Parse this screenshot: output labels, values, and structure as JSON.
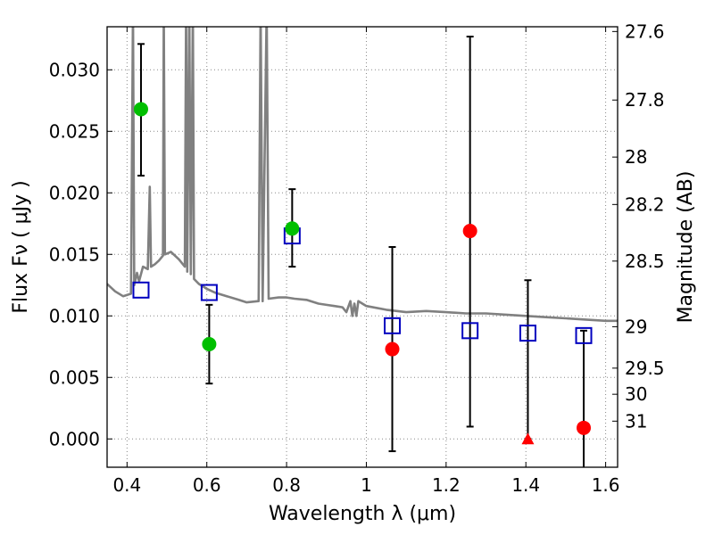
{
  "chart_data": {
    "type": "scatter",
    "title": "",
    "xlabel": "Wavelength  λ (μm)",
    "ylabel": "Flux  Fν  ( μJy )",
    "y2label": "Magnitude (AB)",
    "xlim": [
      0.35,
      1.63
    ],
    "ylim": [
      -0.0023,
      0.0335
    ],
    "grid": true,
    "xticks": [
      {
        "v": 0.4,
        "label": "0.4"
      },
      {
        "v": 0.6,
        "label": "0.6"
      },
      {
        "v": 0.8,
        "label": "0.8"
      },
      {
        "v": 1.0,
        "label": "1"
      },
      {
        "v": 1.2,
        "label": "1.2"
      },
      {
        "v": 1.4,
        "label": "1.4"
      },
      {
        "v": 1.6,
        "label": "1.6"
      }
    ],
    "yticks": [
      {
        "v": 0.0,
        "label": "0.000"
      },
      {
        "v": 0.005,
        "label": "0.005"
      },
      {
        "v": 0.01,
        "label": "0.010"
      },
      {
        "v": 0.015,
        "label": "0.015"
      },
      {
        "v": 0.02,
        "label": "0.020"
      },
      {
        "v": 0.025,
        "label": "0.025"
      },
      {
        "v": 0.03,
        "label": "0.030"
      }
    ],
    "magnitude_ticks": [
      "27.6",
      "27.8",
      "28",
      "28.2",
      "28.5",
      "29",
      "29.5",
      "30",
      "31"
    ],
    "observed_detections": [
      {
        "x": 0.435,
        "y": 0.0268,
        "yerr_low": 0.0214,
        "yerr_high": 0.0321
      },
      {
        "x": 0.606,
        "y": 0.0077,
        "yerr_low": 0.0045,
        "yerr_high": 0.0109
      },
      {
        "x": 0.814,
        "y": 0.0171,
        "yerr_low": 0.014,
        "yerr_high": 0.0203
      }
    ],
    "observed_nir": [
      {
        "x": 1.065,
        "y": 0.0073,
        "yerr_low": -0.001,
        "yerr_high": 0.0156
      },
      {
        "x": 1.26,
        "y": 0.0169,
        "yerr_low": 0.001,
        "yerr_high": 0.0327
      },
      {
        "x": 1.545,
        "y": 0.0009,
        "yerr_low": -0.004,
        "yerr_high": 0.0088
      }
    ],
    "upper_limit": [
      {
        "x": 1.405,
        "y": 0.0,
        "yerr_high": 0.0129
      }
    ],
    "model_photometry": [
      {
        "x": 0.435,
        "y": 0.0121
      },
      {
        "x": 0.606,
        "y": 0.0119
      },
      {
        "x": 0.814,
        "y": 0.0165
      },
      {
        "x": 1.065,
        "y": 0.0092
      },
      {
        "x": 1.26,
        "y": 0.0088
      },
      {
        "x": 1.405,
        "y": 0.0086
      },
      {
        "x": 1.545,
        "y": 0.0084
      }
    ],
    "model_spectrum": [
      [
        0.35,
        0.0126
      ],
      [
        0.37,
        0.012
      ],
      [
        0.39,
        0.0116
      ],
      [
        0.41,
        0.0118
      ],
      [
        0.415,
        0.035
      ],
      [
        0.418,
        0.0125
      ],
      [
        0.425,
        0.0135
      ],
      [
        0.43,
        0.0128
      ],
      [
        0.44,
        0.014
      ],
      [
        0.452,
        0.0138
      ],
      [
        0.457,
        0.0205
      ],
      [
        0.46,
        0.014
      ],
      [
        0.47,
        0.0142
      ],
      [
        0.48,
        0.0145
      ],
      [
        0.49,
        0.0149
      ],
      [
        0.492,
        0.035
      ],
      [
        0.495,
        0.015
      ],
      [
        0.51,
        0.0152
      ],
      [
        0.53,
        0.0146
      ],
      [
        0.545,
        0.014
      ],
      [
        0.548,
        0.035
      ],
      [
        0.551,
        0.0136
      ],
      [
        0.556,
        0.035
      ],
      [
        0.56,
        0.0134
      ],
      [
        0.565,
        0.035
      ],
      [
        0.568,
        0.013
      ],
      [
        0.58,
        0.0126
      ],
      [
        0.6,
        0.0122
      ],
      [
        0.62,
        0.0119
      ],
      [
        0.65,
        0.0116
      ],
      [
        0.68,
        0.0113
      ],
      [
        0.7,
        0.0111
      ],
      [
        0.73,
        0.0112
      ],
      [
        0.735,
        0.035
      ],
      [
        0.74,
        0.0112
      ],
      [
        0.75,
        0.035
      ],
      [
        0.755,
        0.0114
      ],
      [
        0.78,
        0.0115
      ],
      [
        0.8,
        0.0115
      ],
      [
        0.82,
        0.0114
      ],
      [
        0.85,
        0.0113
      ],
      [
        0.88,
        0.011
      ],
      [
        0.9,
        0.0109
      ],
      [
        0.92,
        0.0108
      ],
      [
        0.94,
        0.0107
      ],
      [
        0.95,
        0.0103
      ],
      [
        0.96,
        0.0112
      ],
      [
        0.965,
        0.01
      ],
      [
        0.97,
        0.011
      ],
      [
        0.975,
        0.01
      ],
      [
        0.98,
        0.0112
      ],
      [
        0.99,
        0.011
      ],
      [
        1.0,
        0.0108
      ],
      [
        1.05,
        0.0105
      ],
      [
        1.1,
        0.0103
      ],
      [
        1.15,
        0.0104
      ],
      [
        1.2,
        0.0103
      ],
      [
        1.25,
        0.0102
      ],
      [
        1.3,
        0.0102
      ],
      [
        1.35,
        0.0101
      ],
      [
        1.4,
        0.01
      ],
      [
        1.45,
        0.0099
      ],
      [
        1.5,
        0.0098
      ],
      [
        1.55,
        0.0097
      ],
      [
        1.6,
        0.0096
      ],
      [
        1.63,
        0.0096
      ]
    ],
    "colors": {
      "spectrum": "#808080",
      "detections": "#00bf00",
      "nir": "#ff0000",
      "model_squares": "#0000bf",
      "grid": "#888888"
    }
  }
}
